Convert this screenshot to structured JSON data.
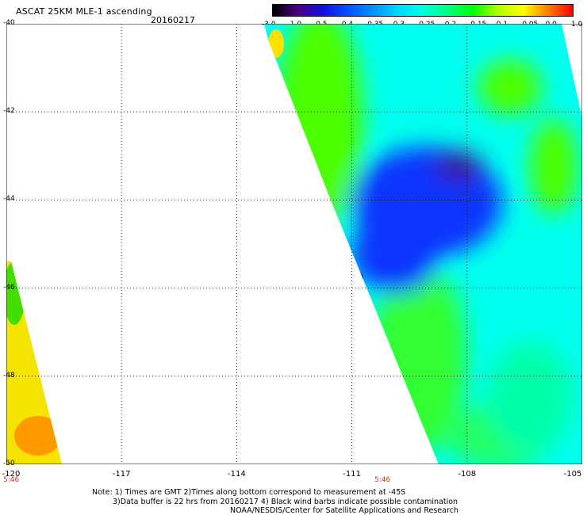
{
  "header": {
    "title": "ASCAT 25KM MLE-1 ascending",
    "date": "20160217"
  },
  "colorbar": {
    "labels": [
      "-3.0",
      "-1.0",
      "-0.5",
      "-0.4",
      "-0.35",
      "-0.3",
      "-0.25",
      "-0.2",
      "-0.15",
      "-0.1",
      "-0.05",
      "0.0",
      "1.0"
    ],
    "colors": [
      "#000000",
      "#4b0082",
      "#1010e0",
      "#0050ff",
      "#0090ff",
      "#00d8ff",
      "#00ffe0",
      "#00ff80",
      "#00ff00",
      "#b0ff00",
      "#ffff00",
      "#ff8000",
      "#ff0000"
    ]
  },
  "axes": {
    "y_ticks": [
      "-40",
      "-42",
      "-44",
      "-46",
      "-48",
      "-50"
    ],
    "x_ticks": [
      "-120",
      "-117",
      "-114",
      "-111",
      "-108",
      "-105"
    ],
    "time_left": "5:46",
    "time_mid": "5:46"
  },
  "footer": {
    "note_line1": "Note: 1) Times are GMT 2)Times along bottom correspond to measurement at -45S",
    "note_line2": "3)Data buffer is 22 hrs from 20160217 4) Black wind barbs indicate possible contamination",
    "credit": "NOAA/NESDIS/Center for Satellite Applications and Research"
  }
}
